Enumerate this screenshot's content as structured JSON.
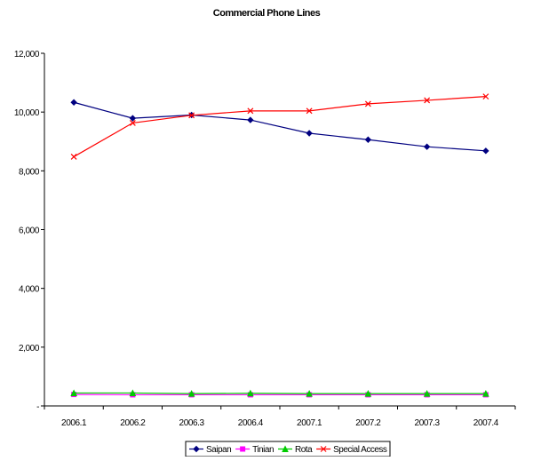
{
  "chart_data": {
    "type": "line",
    "title": "Commercial Phone Lines",
    "xlabel": "",
    "ylabel": "",
    "categories": [
      "2006.1",
      "2006.2",
      "2006.3",
      "2006.4",
      "2007.1",
      "2007.2",
      "2007.3",
      "2007.4"
    ],
    "ylim": [
      0,
      12000
    ],
    "yticks": [
      0,
      2000,
      4000,
      6000,
      8000,
      10000,
      12000
    ],
    "ytick_labels": [
      "-",
      "2,000",
      "4,000",
      "6,000",
      "8,000",
      "10,000",
      "12,000"
    ],
    "grid": false,
    "legend_position": "bottom",
    "series": [
      {
        "name": "Saipan",
        "color": "#000080",
        "marker": "diamond",
        "values": [
          10330,
          9790,
          9900,
          9730,
          9280,
          9060,
          8820,
          8680
        ]
      },
      {
        "name": "Tinian",
        "color": "#ff00ff",
        "marker": "square",
        "values": [
          390,
          380,
          380,
          380,
          380,
          380,
          380,
          380
        ]
      },
      {
        "name": "Rota",
        "color": "#00cc00",
        "marker": "triangle",
        "values": [
          440,
          440,
          420,
          430,
          420,
          420,
          420,
          420
        ]
      },
      {
        "name": "Special Access",
        "color": "#ff0000",
        "marker": "x",
        "values": [
          8480,
          9630,
          9890,
          10040,
          10040,
          10280,
          10400,
          10530
        ]
      }
    ]
  }
}
